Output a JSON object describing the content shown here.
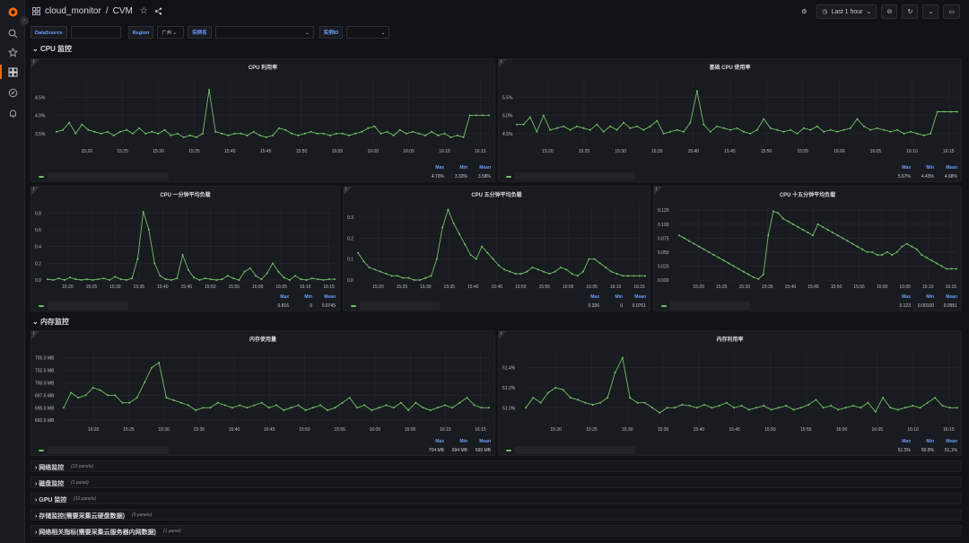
{
  "topbar": {
    "dashboard_name": "cloud_monitor",
    "separator": "/",
    "title": "CVM",
    "time_range": "Last 1 hour"
  },
  "variables": [
    {
      "label": "DataSource",
      "value": ""
    },
    {
      "label": "Region",
      "value": "广州"
    },
    {
      "label": "实例名",
      "value": ""
    },
    {
      "label": "实例ID",
      "value": ""
    }
  ],
  "colors": {
    "series": "#73bf69",
    "accent": "#6e9fff",
    "background": "#111217",
    "panel": "#181b1f"
  },
  "sections": {
    "cpu": "CPU 监控",
    "mem": "内存监控"
  },
  "legend_headers": {
    "max": "Max",
    "min": "Min",
    "mean": "Mean"
  },
  "collapsed_rows": [
    {
      "title": "网络监控",
      "count": "(12 panels)"
    },
    {
      "title": "磁盘监控",
      "count": "(1 panel)"
    },
    {
      "title": "GPU 监控",
      "count": "(10 panels)"
    },
    {
      "title": "存储监控(需要采集云硬盘数据)",
      "count": "(9 panels)"
    },
    {
      "title": "网络相关指标(需要采集云服务器内网数据)",
      "count": "(1 panel)"
    }
  ],
  "chart_data": [
    {
      "id": "cpu_usage",
      "type": "line",
      "title": "CPU 利用率",
      "y_ticks": [
        "4.5%",
        "4.0%",
        "3.5%"
      ],
      "y_tick_values": [
        4.5,
        4.0,
        3.5
      ],
      "ylim": [
        3.2,
        5.0
      ],
      "x_ticks": [
        "15:20",
        "15:25",
        "15:30",
        "15:35",
        "15:40",
        "15:45",
        "15:50",
        "15:55",
        "16:00",
        "16:05",
        "16:10",
        "16:15"
      ],
      "values": [
        3.55,
        3.6,
        3.8,
        3.5,
        3.75,
        3.6,
        3.55,
        3.5,
        3.55,
        3.45,
        3.55,
        3.6,
        3.5,
        3.65,
        3.5,
        3.55,
        3.5,
        3.6,
        3.45,
        3.5,
        3.4,
        3.45,
        3.4,
        3.5,
        4.7,
        3.55,
        3.5,
        3.45,
        3.5,
        3.5,
        3.45,
        3.55,
        3.45,
        3.4,
        3.45,
        3.65,
        3.6,
        3.5,
        3.45,
        3.5,
        3.55,
        3.5,
        3.5,
        3.45,
        3.5,
        3.5,
        3.45,
        3.5,
        3.55,
        3.65,
        3.7,
        3.5,
        3.55,
        3.45,
        3.6,
        3.5,
        3.55,
        3.5,
        3.45,
        3.55,
        3.45,
        3.5,
        3.4,
        3.45,
        3.4,
        4.0,
        4.0,
        4.0,
        4.0
      ],
      "legend": {
        "max": "4.70%",
        "min": "3.33%",
        "mean": "3.58%"
      }
    },
    {
      "id": "base_cpu",
      "type": "line",
      "title": "基础 CPU 使用率",
      "y_ticks": [
        "5.5%",
        "5.0%",
        "4.5%"
      ],
      "y_tick_values": [
        5.5,
        5.0,
        4.5
      ],
      "ylim": [
        4.2,
        6.0
      ],
      "x_ticks": [
        "15:20",
        "15:25",
        "15:30",
        "15:35",
        "15:40",
        "15:45",
        "15:50",
        "15:55",
        "16:00",
        "16:05",
        "16:10",
        "16:15"
      ],
      "values": [
        4.75,
        4.75,
        4.95,
        4.55,
        5.0,
        4.6,
        4.65,
        4.7,
        4.6,
        4.7,
        4.65,
        4.6,
        4.75,
        4.55,
        4.7,
        4.6,
        4.8,
        4.65,
        4.7,
        4.6,
        4.7,
        4.85,
        4.5,
        4.55,
        4.6,
        4.55,
        4.8,
        5.67,
        4.75,
        4.55,
        4.7,
        4.65,
        4.6,
        4.65,
        4.55,
        4.5,
        4.6,
        4.9,
        4.65,
        4.6,
        4.55,
        4.6,
        4.5,
        4.65,
        4.6,
        4.7,
        4.55,
        4.6,
        4.55,
        4.6,
        4.65,
        4.9,
        4.7,
        4.6,
        4.65,
        4.6,
        4.55,
        4.6,
        4.5,
        4.55,
        4.5,
        4.45,
        4.5,
        5.1,
        5.1,
        5.1,
        5.1
      ],
      "legend": {
        "max": "5.67%",
        "min": "4.43%",
        "mean": "4.68%"
      }
    },
    {
      "id": "load1",
      "type": "line",
      "title": "CPU 一分钟平均负载",
      "y_ticks": [
        "0.8",
        "0.6",
        "0.4",
        "0.2",
        "0.0"
      ],
      "y_tick_values": [
        0.8,
        0.6,
        0.4,
        0.2,
        0.0
      ],
      "ylim": [
        0,
        0.9
      ],
      "x_ticks": [
        "15:20",
        "15:25",
        "15:30",
        "15:35",
        "15:40",
        "15:45",
        "15:50",
        "15:55",
        "16:00",
        "16:05",
        "16:10",
        "16:15"
      ],
      "values": [
        0.01,
        0.0,
        0.02,
        0.0,
        0.03,
        0.01,
        0.0,
        0.01,
        0.0,
        0.01,
        0.02,
        0.0,
        0.04,
        0.01,
        0.0,
        0.02,
        0.25,
        0.816,
        0.6,
        0.2,
        0.05,
        0.01,
        0.0,
        0.02,
        0.3,
        0.12,
        0.03,
        0.0,
        0.02,
        0.01,
        0.0,
        0.01,
        0.05,
        0.02,
        0.0,
        0.1,
        0.14,
        0.05,
        0.01,
        0.08,
        0.2,
        0.1,
        0.03,
        0.0,
        0.05,
        0.01,
        0.0,
        0.02,
        0.01,
        0.0,
        0.01,
        0.01
      ],
      "legend": {
        "max": "0.816",
        "min": "0",
        "mean": "0.0745"
      }
    },
    {
      "id": "load5",
      "type": "line",
      "title": "CPU 五分钟平均负载",
      "y_ticks": [
        "0.3",
        "0.2",
        "0.1",
        "0.0"
      ],
      "y_tick_values": [
        0.3,
        0.2,
        0.1,
        0.0
      ],
      "ylim": [
        0,
        0.36
      ],
      "x_ticks": [
        "15:20",
        "15:25",
        "15:30",
        "15:35",
        "15:40",
        "15:45",
        "15:50",
        "15:55",
        "16:00",
        "16:05",
        "16:10",
        "16:15"
      ],
      "values": [
        0.13,
        0.09,
        0.06,
        0.05,
        0.04,
        0.03,
        0.02,
        0.02,
        0.01,
        0.01,
        0.0,
        0.0,
        0.01,
        0.02,
        0.1,
        0.25,
        0.336,
        0.27,
        0.22,
        0.17,
        0.12,
        0.1,
        0.16,
        0.13,
        0.1,
        0.07,
        0.05,
        0.04,
        0.03,
        0.03,
        0.04,
        0.06,
        0.05,
        0.04,
        0.03,
        0.04,
        0.06,
        0.05,
        0.03,
        0.02,
        0.04,
        0.1,
        0.1,
        0.08,
        0.06,
        0.04,
        0.03,
        0.02,
        0.02,
        0.02,
        0.02,
        0.02
      ],
      "legend": {
        "max": "0.336",
        "min": "0",
        "mean": "0.0761"
      }
    },
    {
      "id": "load15",
      "type": "line",
      "title": "CPU 十五分钟平均负载",
      "y_ticks": [
        "0.125",
        "0.100",
        "0.075",
        "0.050",
        "0.025",
        "0.000"
      ],
      "y_tick_values": [
        0.125,
        0.1,
        0.075,
        0.05,
        0.025,
        0
      ],
      "ylim": [
        0,
        0.135
      ],
      "x_ticks": [
        "15:20",
        "15:25",
        "15:30",
        "15:35",
        "15:40",
        "15:45",
        "15:50",
        "15:55",
        "16:00",
        "16:05",
        "16:10",
        "16:15"
      ],
      "values": [
        0.08,
        0.075,
        0.07,
        0.065,
        0.06,
        0.055,
        0.05,
        0.045,
        0.04,
        0.035,
        0.03,
        0.025,
        0.02,
        0.015,
        0.01,
        0.005,
        0.002,
        0.01,
        0.08,
        0.123,
        0.12,
        0.11,
        0.105,
        0.1,
        0.095,
        0.09,
        0.085,
        0.08,
        0.1,
        0.095,
        0.09,
        0.085,
        0.08,
        0.075,
        0.07,
        0.065,
        0.06,
        0.055,
        0.05,
        0.05,
        0.045,
        0.045,
        0.05,
        0.045,
        0.05,
        0.06,
        0.065,
        0.06,
        0.055,
        0.045,
        0.04,
        0.035,
        0.03,
        0.025,
        0.02,
        0.02,
        0.02
      ],
      "legend": {
        "max": "0.123",
        "min": "0.00100",
        "mean": "0.0551"
      }
    },
    {
      "id": "mem_used",
      "type": "line",
      "title": "内存使用量",
      "y_ticks": [
        "705.0 MB",
        "702.5 MB",
        "700.0 MB",
        "697.5 MB",
        "695.0 MB",
        "692.5 MB"
      ],
      "y_tick_values": [
        705,
        702.5,
        700,
        697.5,
        695,
        692.5
      ],
      "ylim": [
        692,
        706
      ],
      "x_ticks": [
        "15:20",
        "15:25",
        "15:30",
        "15:35",
        "15:40",
        "15:45",
        "15:50",
        "15:55",
        "16:00",
        "16:05",
        "16:10",
        "16:15"
      ],
      "values": [
        695,
        698,
        697,
        697.5,
        699,
        698.5,
        697.5,
        697.5,
        696,
        696,
        697,
        700,
        703,
        704,
        697,
        696.5,
        696,
        695.5,
        694.5,
        695,
        695,
        696,
        695.5,
        695,
        695.5,
        695,
        695.5,
        696,
        695,
        695.5,
        694.5,
        695,
        695.5,
        694.5,
        695,
        695.5,
        694.5,
        695,
        696,
        697,
        695,
        695.5,
        694.5,
        695,
        695.5,
        695,
        696,
        694.5,
        696,
        695,
        694.5,
        695,
        695.5,
        695,
        696,
        697,
        695.5,
        695,
        695
      ],
      "legend": {
        "max": "704 MB",
        "min": "694 MB",
        "mean": "696 MB"
      }
    },
    {
      "id": "mem_usage",
      "type": "line",
      "title": "内存利用率",
      "y_ticks": [
        "51.4%",
        "51.2%",
        "51.0%"
      ],
      "y_tick_values": [
        51.4,
        51.2,
        51.0
      ],
      "ylim": [
        50.85,
        51.55
      ],
      "x_ticks": [
        "15:20",
        "15:25",
        "15:30",
        "15:35",
        "15:40",
        "15:45",
        "15:50",
        "15:55",
        "16:00",
        "16:05",
        "16:10",
        "16:15"
      ],
      "values": [
        51.0,
        51.1,
        51.05,
        51.15,
        51.2,
        51.18,
        51.1,
        51.08,
        51.05,
        51.03,
        51.05,
        51.1,
        51.35,
        51.5,
        51.1,
        51.05,
        51.05,
        51.0,
        50.95,
        51.0,
        51.0,
        51.03,
        51.02,
        51.0,
        51.03,
        51.0,
        51.02,
        51.05,
        51.0,
        51.02,
        50.98,
        51.0,
        51.02,
        50.98,
        51.0,
        51.02,
        50.98,
        51.0,
        51.03,
        51.08,
        51.0,
        51.02,
        50.98,
        51.0,
        51.02,
        51.0,
        51.05,
        50.96,
        51.1,
        51.0,
        50.98,
        51.0,
        51.02,
        51.0,
        51.05,
        51.1,
        51.02,
        51.0,
        51.0
      ],
      "legend": {
        "max": "51.5%",
        "min": "50.9%",
        "mean": "51.1%"
      }
    }
  ]
}
